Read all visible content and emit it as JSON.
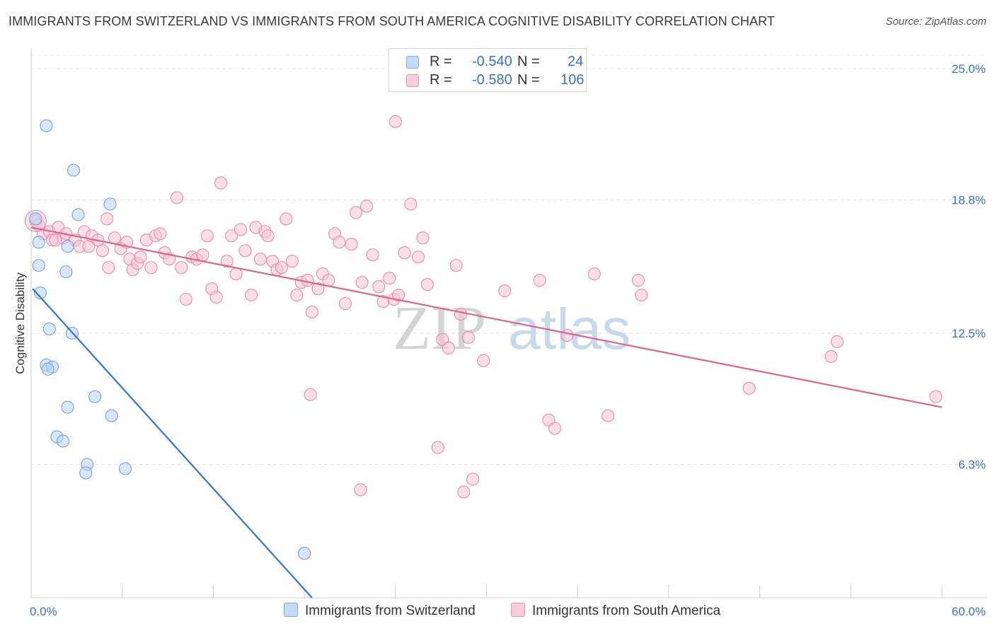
{
  "header": {
    "title": "IMMIGRANTS FROM SWITZERLAND VS IMMIGRANTS FROM SOUTH AMERICA COGNITIVE DISABILITY CORRELATION CHART",
    "source": "Source: ZipAtlas.com"
  },
  "legend": {
    "rows": [
      {
        "r_label": "R = ",
        "r_value": "-0.540",
        "n_label": "N = ",
        "n_value": "24",
        "color": "#9ec3ef"
      },
      {
        "r_label": "R = ",
        "r_value": "-0.580",
        "n_label": "N = ",
        "n_value": "106",
        "color": "#f5b8cc"
      }
    ]
  },
  "watermark": {
    "zip": "ZIP",
    "atlas": "atlas"
  },
  "chart_data": {
    "type": "scatter",
    "xlabel": "",
    "ylabel": "Cognitive Disability",
    "xlim": [
      0,
      60
    ],
    "ylim": [
      0,
      25
    ],
    "x_tick_labels": [
      "0.0%",
      "60.0%"
    ],
    "y_ticks": [
      6.3,
      12.5,
      18.8,
      25.0
    ],
    "y_tick_labels": [
      "6.3%",
      "12.5%",
      "18.8%",
      "25.0%"
    ],
    "grid": true,
    "legend_position": "bottom",
    "series": [
      {
        "name": "Immigrants from Switzerland",
        "color": "#6fa3e3",
        "fill": "#b9d3f3",
        "line_color": "#2e76d6",
        "trend": {
          "x0": 0.1,
          "y0": 14.6,
          "x1": 18.5,
          "y1": 0
        },
        "points": [
          [
            0.3,
            17.9
          ],
          [
            0.5,
            16.8
          ],
          [
            0.5,
            15.7
          ],
          [
            0.6,
            14.4
          ],
          [
            1.0,
            22.3
          ],
          [
            1.2,
            12.7
          ],
          [
            1.0,
            11.0
          ],
          [
            1.4,
            10.9
          ],
          [
            1.1,
            10.8
          ],
          [
            1.7,
            7.6
          ],
          [
            2.1,
            7.4
          ],
          [
            2.3,
            15.4
          ],
          [
            2.4,
            16.6
          ],
          [
            2.7,
            12.5
          ],
          [
            2.8,
            20.2
          ],
          [
            3.1,
            18.1
          ],
          [
            2.4,
            9.0
          ],
          [
            4.2,
            9.5
          ],
          [
            5.2,
            18.6
          ],
          [
            5.3,
            8.6
          ],
          [
            3.7,
            6.3
          ],
          [
            3.6,
            5.9
          ],
          [
            6.2,
            6.1
          ],
          [
            18.0,
            2.1
          ]
        ]
      },
      {
        "name": "Immigrants from South America",
        "color": "#ea8bab",
        "fill": "#f7c4d5",
        "line_color": "#e0638f",
        "trend": {
          "x0": 0.0,
          "y0": 17.5,
          "x1": 60.0,
          "y1": 9.0
        },
        "points": [
          [
            0.3,
            17.8
          ],
          [
            0.5,
            17.6
          ],
          [
            0.8,
            17.2
          ],
          [
            1.2,
            17.3
          ],
          [
            1.4,
            16.9
          ],
          [
            1.8,
            17.5
          ],
          [
            2.1,
            17.0
          ],
          [
            2.3,
            17.2
          ],
          [
            2.9,
            16.9
          ],
          [
            3.2,
            16.6
          ],
          [
            3.5,
            17.3
          ],
          [
            3.8,
            16.6
          ],
          [
            4.0,
            17.1
          ],
          [
            4.4,
            16.9
          ],
          [
            4.7,
            16.4
          ],
          [
            5.0,
            17.9
          ],
          [
            5.1,
            15.6
          ],
          [
            5.5,
            17.0
          ],
          [
            5.9,
            16.5
          ],
          [
            6.3,
            16.8
          ],
          [
            6.5,
            16.0
          ],
          [
            6.7,
            15.5
          ],
          [
            7.0,
            15.8
          ],
          [
            7.2,
            16.1
          ],
          [
            7.6,
            16.9
          ],
          [
            7.9,
            15.6
          ],
          [
            8.2,
            17.1
          ],
          [
            8.5,
            17.2
          ],
          [
            8.8,
            16.3
          ],
          [
            9.1,
            16.0
          ],
          [
            9.6,
            18.9
          ],
          [
            9.9,
            15.6
          ],
          [
            10.2,
            14.1
          ],
          [
            10.6,
            16.1
          ],
          [
            10.9,
            16.0
          ],
          [
            11.3,
            16.2
          ],
          [
            11.6,
            17.1
          ],
          [
            11.9,
            14.6
          ],
          [
            12.2,
            14.2
          ],
          [
            12.5,
            19.6
          ],
          [
            12.9,
            15.9
          ],
          [
            13.2,
            17.1
          ],
          [
            13.5,
            15.3
          ],
          [
            13.8,
            17.4
          ],
          [
            14.1,
            16.4
          ],
          [
            14.5,
            14.3
          ],
          [
            14.8,
            17.5
          ],
          [
            15.1,
            16.0
          ],
          [
            15.4,
            17.3
          ],
          [
            15.6,
            17.1
          ],
          [
            15.9,
            15.9
          ],
          [
            16.2,
            15.5
          ],
          [
            16.5,
            15.6
          ],
          [
            16.8,
            17.9
          ],
          [
            17.2,
            15.9
          ],
          [
            17.5,
            14.3
          ],
          [
            17.8,
            14.9
          ],
          [
            18.2,
            15.0
          ],
          [
            18.5,
            13.5
          ],
          [
            18.9,
            14.6
          ],
          [
            19.2,
            15.3
          ],
          [
            19.6,
            15.0
          ],
          [
            20.0,
            17.2
          ],
          [
            20.3,
            16.8
          ],
          [
            20.7,
            13.9
          ],
          [
            21.1,
            16.7
          ],
          [
            21.4,
            18.2
          ],
          [
            21.8,
            14.9
          ],
          [
            22.1,
            18.5
          ],
          [
            22.5,
            16.2
          ],
          [
            22.9,
            14.7
          ],
          [
            23.2,
            14.0
          ],
          [
            23.6,
            15.1
          ],
          [
            23.9,
            14.1
          ],
          [
            24.2,
            14.3
          ],
          [
            24.6,
            16.3
          ],
          [
            24.0,
            22.5
          ],
          [
            25.0,
            18.6
          ],
          [
            25.5,
            16.1
          ],
          [
            25.8,
            17.0
          ],
          [
            26.1,
            14.8
          ],
          [
            27.1,
            12.2
          ],
          [
            27.5,
            11.8
          ],
          [
            28.0,
            15.7
          ],
          [
            28.3,
            13.4
          ],
          [
            28.8,
            12.3
          ],
          [
            29.8,
            11.2
          ],
          [
            31.2,
            14.5
          ],
          [
            33.5,
            15.0
          ],
          [
            34.1,
            8.4
          ],
          [
            34.5,
            8.0
          ],
          [
            35.3,
            12.4
          ],
          [
            37.1,
            15.3
          ],
          [
            38.0,
            8.6
          ],
          [
            40.0,
            15.0
          ],
          [
            40.2,
            14.3
          ],
          [
            26.8,
            7.1
          ],
          [
            28.5,
            5.0
          ],
          [
            29.1,
            5.6
          ],
          [
            21.7,
            5.1
          ],
          [
            18.4,
            9.6
          ],
          [
            47.3,
            9.9
          ],
          [
            52.7,
            11.4
          ],
          [
            53.1,
            12.1
          ],
          [
            59.6,
            9.5
          ],
          [
            1.6,
            16.9
          ]
        ]
      }
    ]
  }
}
